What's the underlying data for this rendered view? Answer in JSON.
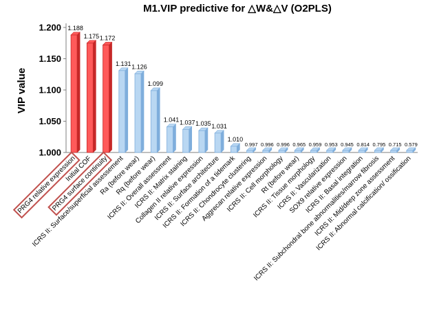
{
  "chart_data": {
    "type": "bar",
    "title": "M1.VIP predictive for △W&△V (O2PLS)",
    "xlabel": "",
    "ylabel": "VIP value",
    "ylim": [
      1.0,
      1.2
    ],
    "yticks": [
      "1.000",
      "1.050",
      "1.100",
      "1.150",
      "1.200"
    ],
    "grid": false,
    "legend": "none",
    "categories": [
      "PRG4 relative expression",
      "Initial COF",
      "PRG4 surface continuity",
      "ICRS II: Surface/superficial assessement",
      "Ra (before wear)",
      "Rq (before wear)",
      "ICRS II: Overall assessment",
      "ICRS II: Matrix staining",
      "Collagen II relative expression",
      "ICRS II: Surface architecture",
      "ICRS II: Formation of a tidemark",
      "ICRS II: Chondrocyte clustering",
      "Aggrecan relative expression",
      "ICRS II: Cell morphology",
      "Rt (before wear)",
      "ICRS II: Tissue morphology",
      "ICRS II: Vascularization",
      "SOX9 relative expression",
      "ICRS II: Basal integration",
      "ICRS II: Subchondral bone abnormalities/marrow fibrosis",
      "ICRS II: Mid/deep zone assessment",
      "ICRS II: Abnormal calcification/ ossification"
    ],
    "value_labels": [
      "1.188",
      "1.175",
      "1.172",
      "1.131",
      "1.126",
      "1.099",
      "1.041",
      "1.037",
      "1.035",
      "1.031",
      "1.010",
      "0.997",
      "0.996",
      "0.996",
      "0.965",
      "0.959",
      "0.953",
      "0.945",
      "0.814",
      "0.795",
      "0.715",
      "0.579"
    ],
    "values": [
      1.188,
      1.175,
      1.172,
      1.131,
      1.126,
      1.099,
      1.041,
      1.037,
      1.035,
      1.031,
      1.01,
      0.997,
      0.996,
      0.996,
      0.965,
      0.959,
      0.953,
      0.945,
      0.814,
      0.795,
      0.715,
      0.579
    ],
    "highlighted": [
      true,
      true,
      true,
      false,
      false,
      false,
      false,
      false,
      false,
      false,
      false,
      false,
      false,
      false,
      false,
      false,
      false,
      false,
      false,
      false,
      false,
      false
    ],
    "boxed_labels": [
      true,
      false,
      true,
      false,
      false,
      false,
      false,
      false,
      false,
      false,
      false,
      false,
      false,
      false,
      false,
      false,
      false,
      false,
      false,
      false,
      false,
      false
    ],
    "colors": {
      "highlight_fill": "#ff5a5a",
      "highlight_side": "#c62828",
      "normal_fill": "#b9d7f2",
      "normal_side": "#7faedc",
      "label_box": "#c0504d",
      "axis": "#7f7f7f"
    }
  }
}
